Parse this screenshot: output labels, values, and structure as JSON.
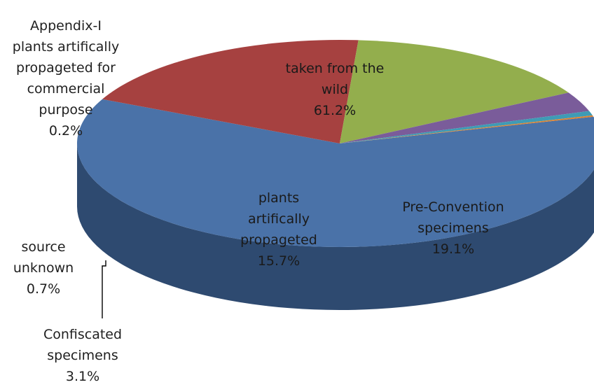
{
  "chart_data": {
    "type": "pie",
    "style": "3d-tilted",
    "title": "",
    "legend": "none",
    "slices": [
      {
        "name": "taken from the wild",
        "value": 61.2,
        "label_lines": [
          "taken from the",
          "wild",
          "61.2%"
        ],
        "color": "#4a72a8",
        "side_color": "#2e4a70"
      },
      {
        "name": "Pre-Convention specimens",
        "value": 19.1,
        "label_lines": [
          "Pre-Convention",
          "specimens",
          "19.1%"
        ],
        "color": "#a64140",
        "side_color": "#5e1f1f"
      },
      {
        "name": "plants artifically propageted",
        "value": 15.7,
        "label_lines": [
          "plants",
          "artifically",
          "propageted",
          "15.7%"
        ],
        "color": "#93ae4d",
        "side_color": "#5b7030"
      },
      {
        "name": "Confiscated specimens",
        "value": 3.1,
        "label_lines": [
          "Confiscated",
          "specimens",
          "3.1%"
        ],
        "color": "#7a5c9a",
        "side_color": "#4a3563"
      },
      {
        "name": "source unknown",
        "value": 0.7,
        "label_lines": [
          "source",
          "unknown",
          "0.7%"
        ],
        "color": "#3f9bb5",
        "side_color": "#276b7e"
      },
      {
        "name": "Appendix-I plants artifically propageted for commercial purpose",
        "value": 0.2,
        "label_lines": [
          "Appendix-I",
          "plants artifically",
          "propageted for",
          "commercial",
          "purpose",
          "0.2%"
        ],
        "color": "#e0832f",
        "side_color": "#9e5a1e"
      }
    ]
  }
}
